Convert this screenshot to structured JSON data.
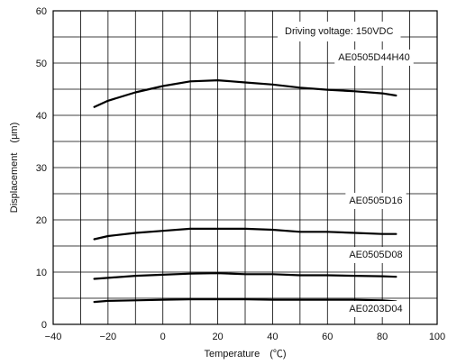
{
  "chart_data": {
    "type": "line",
    "title": "",
    "annotation": "Driving voltage: 150VDC",
    "xlabel": "Temperature　(℃)",
    "ylabel": "Displacement　(μm)",
    "xlim": [
      -40,
      100
    ],
    "ylim": [
      0,
      60
    ],
    "xticks": [
      "−40",
      "−20",
      "0",
      "20",
      "40",
      "60",
      "80",
      "100"
    ],
    "yticks": [
      "0",
      "10",
      "20",
      "30",
      "40",
      "50",
      "60"
    ],
    "grid": true,
    "series": [
      {
        "name": "AE0505D44H40",
        "x": [
          -25,
          -20,
          -10,
          0,
          10,
          20,
          30,
          40,
          50,
          60,
          70,
          80,
          85
        ],
        "values": [
          41.6,
          42.8,
          44.4,
          45.6,
          46.5,
          46.7,
          46.3,
          45.9,
          45.3,
          44.9,
          44.6,
          44.2,
          43.8
        ]
      },
      {
        "name": "AE0505D16",
        "x": [
          -25,
          -20,
          -10,
          0,
          10,
          20,
          30,
          40,
          50,
          60,
          70,
          80,
          85
        ],
        "values": [
          16.3,
          16.9,
          17.5,
          17.9,
          18.3,
          18.3,
          18.3,
          18.1,
          17.7,
          17.7,
          17.5,
          17.3,
          17.3
        ]
      },
      {
        "name": "AE0505D08",
        "x": [
          -25,
          -20,
          -10,
          0,
          10,
          20,
          30,
          40,
          50,
          60,
          70,
          80,
          85
        ],
        "values": [
          8.7,
          8.9,
          9.3,
          9.5,
          9.7,
          9.8,
          9.6,
          9.6,
          9.4,
          9.4,
          9.3,
          9.2,
          9.1
        ]
      },
      {
        "name": "AE0203D04",
        "x": [
          -25,
          -20,
          -10,
          0,
          10,
          20,
          30,
          40,
          50,
          60,
          70,
          80,
          85
        ],
        "values": [
          4.3,
          4.5,
          4.6,
          4.7,
          4.8,
          4.8,
          4.8,
          4.7,
          4.7,
          4.7,
          4.7,
          4.6,
          4.4
        ]
      }
    ]
  }
}
